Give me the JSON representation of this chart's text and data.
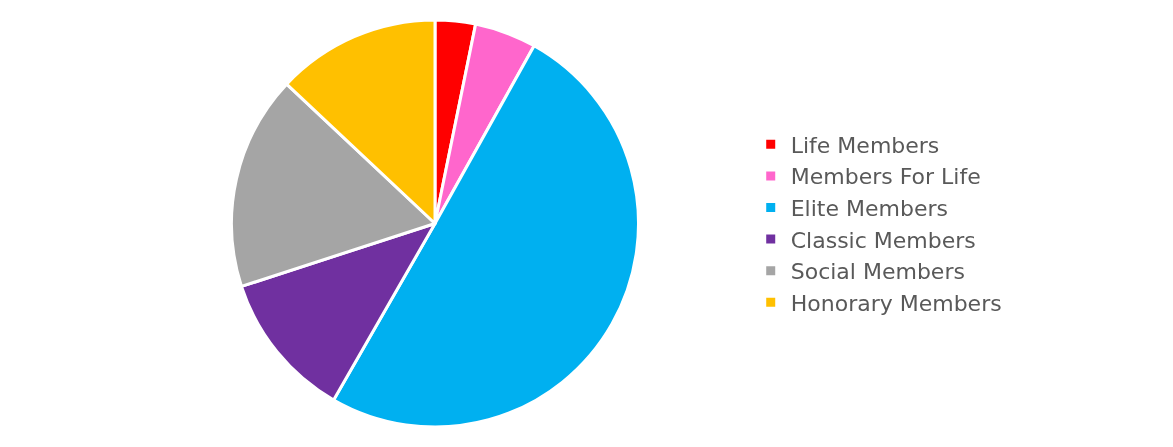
{
  "chart_data": {
    "type": "pie",
    "categories": [
      "Life Members",
      "Members For Life",
      "Elite Members",
      "Classic Members",
      "Social Members",
      "Honorary Members"
    ],
    "values": [
      3.2,
      4.9,
      50.2,
      11.7,
      17.0,
      13.0
    ],
    "colors": [
      "#ff0000",
      "#ff66cc",
      "#00b0f0",
      "#7030a0",
      "#a5a5a5",
      "#ffc000"
    ],
    "legend": "right"
  }
}
